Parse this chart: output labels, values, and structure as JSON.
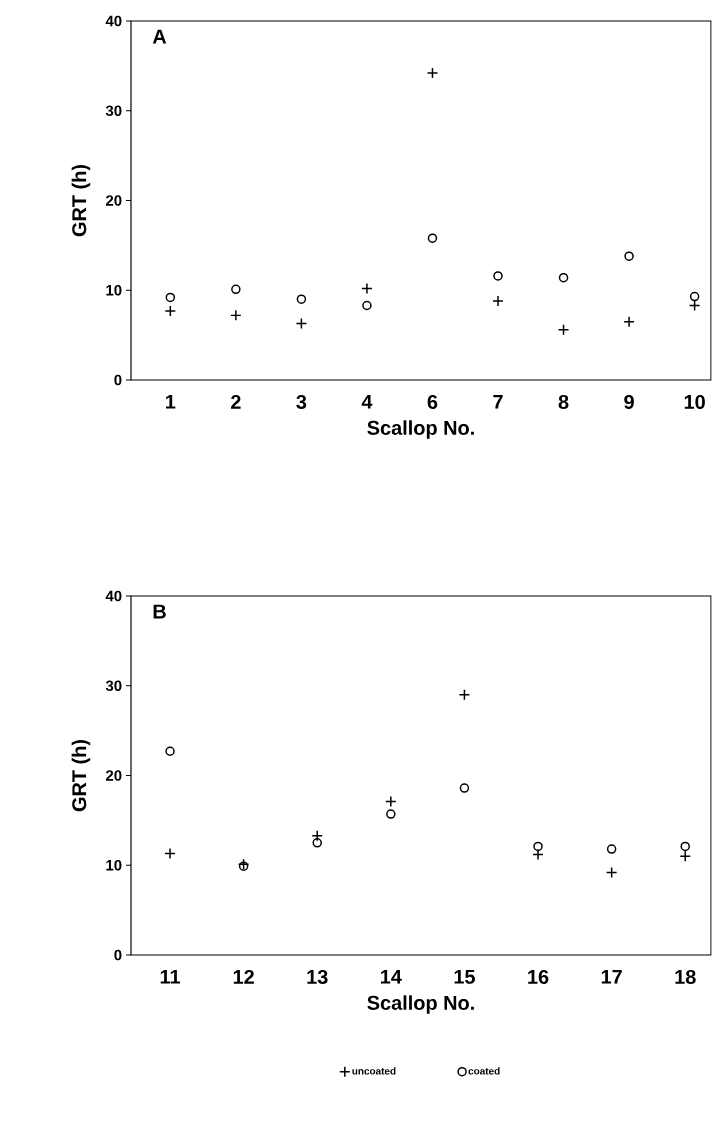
{
  "chart_data": [
    {
      "type": "scatter",
      "title": "A",
      "xlabel": "Scallop No.",
      "ylabel": "GRT (h)",
      "categories": [
        "1",
        "2",
        "3",
        "4",
        "6",
        "7",
        "8",
        "9",
        "10"
      ],
      "ylim": [
        0,
        40
      ],
      "yticks": [
        0,
        10,
        20,
        30,
        40
      ],
      "grid": false,
      "legend": false,
      "series": [
        {
          "color": "#000000",
          "marker": "cross",
          "values": [
            7.7,
            7.2,
            6.3,
            10.2,
            34.2,
            8.8,
            5.6,
            6.5,
            8.3
          ]
        },
        {
          "color": "#000000",
          "marker": "circle",
          "values": [
            9.2,
            10.1,
            9.0,
            8.3,
            15.8,
            11.6,
            11.4,
            13.8,
            9.3
          ]
        }
      ]
    },
    {
      "type": "scatter",
      "title": "B",
      "xlabel": "Scallop No.",
      "ylabel": "GRT (h)",
      "categories": [
        "11",
        "12",
        "13",
        "14",
        "15",
        "16",
        "17",
        "18"
      ],
      "ylim": [
        0,
        40
      ],
      "yticks": [
        0,
        10,
        20,
        30,
        40
      ],
      "grid": false,
      "legend": "bottom",
      "series": [
        {
          "name": "uncoated",
          "color": "#000000",
          "marker": "cross",
          "values": [
            11.3,
            10.1,
            13.3,
            17.1,
            29.0,
            11.2,
            9.2,
            11.0
          ]
        },
        {
          "name": "coated",
          "color": "#000000",
          "marker": "circle",
          "values": [
            22.7,
            9.9,
            12.5,
            15.7,
            18.6,
            12.1,
            11.8,
            12.1
          ]
        }
      ]
    }
  ]
}
